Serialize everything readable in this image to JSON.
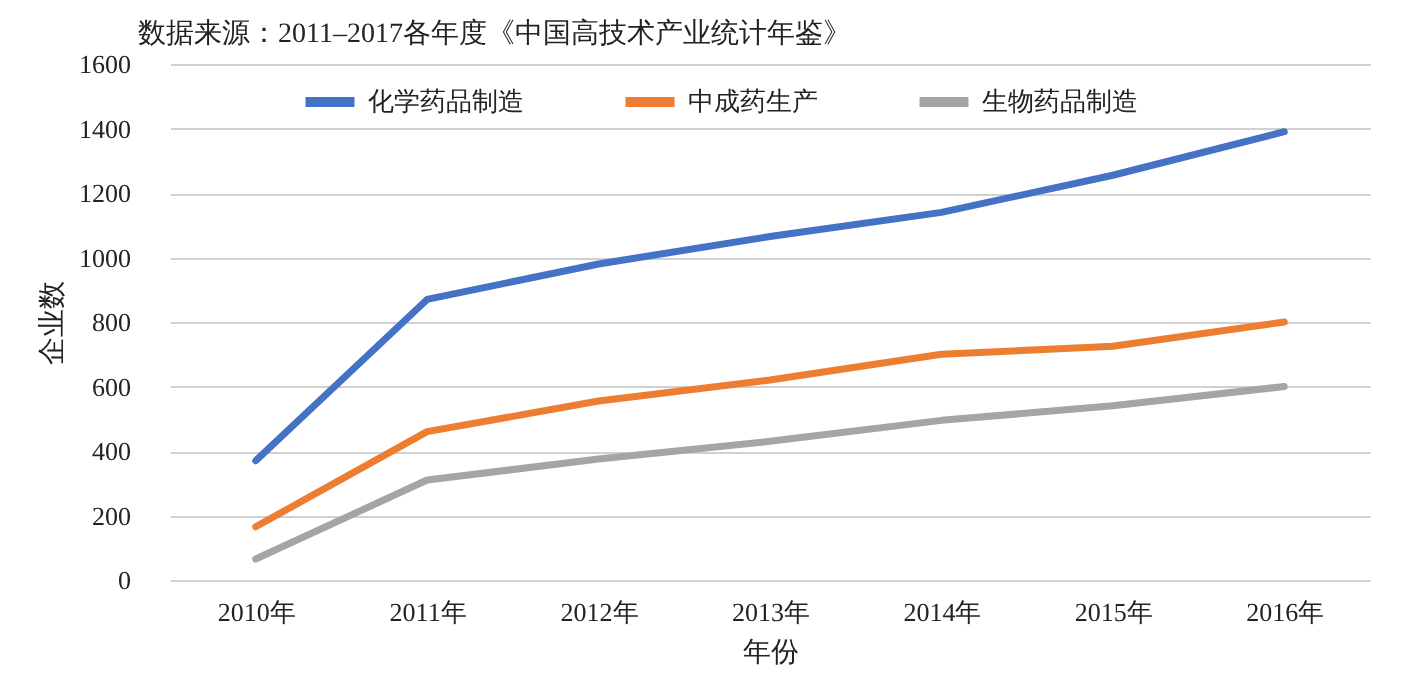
{
  "chart_data": {
    "type": "line",
    "title": "数据来源：2011–2017各年度《中国高技术产业统计年鉴》",
    "xlabel": "年份",
    "ylabel": "企业数",
    "categories": [
      "2010年",
      "2011年",
      "2012年",
      "2013年",
      "2014年",
      "2015年",
      "2016年"
    ],
    "series": [
      {
        "name": "化学药品制造",
        "color": "#4472c4",
        "values": [
          370,
          870,
          980,
          1065,
          1140,
          1255,
          1390
        ]
      },
      {
        "name": "中成药生产",
        "color": "#ed7d31",
        "values": [
          165,
          460,
          555,
          620,
          700,
          725,
          800
        ]
      },
      {
        "name": "生物药品制造",
        "color": "#a5a5a5",
        "values": [
          65,
          310,
          375,
          430,
          495,
          540,
          600
        ]
      }
    ],
    "ylim": [
      0,
      1600
    ],
    "yticks": [
      0,
      200,
      400,
      600,
      800,
      1000,
      1200,
      1400,
      1600
    ],
    "grid": "y",
    "legend": "top",
    "marker": "none",
    "line_style": "solid"
  }
}
